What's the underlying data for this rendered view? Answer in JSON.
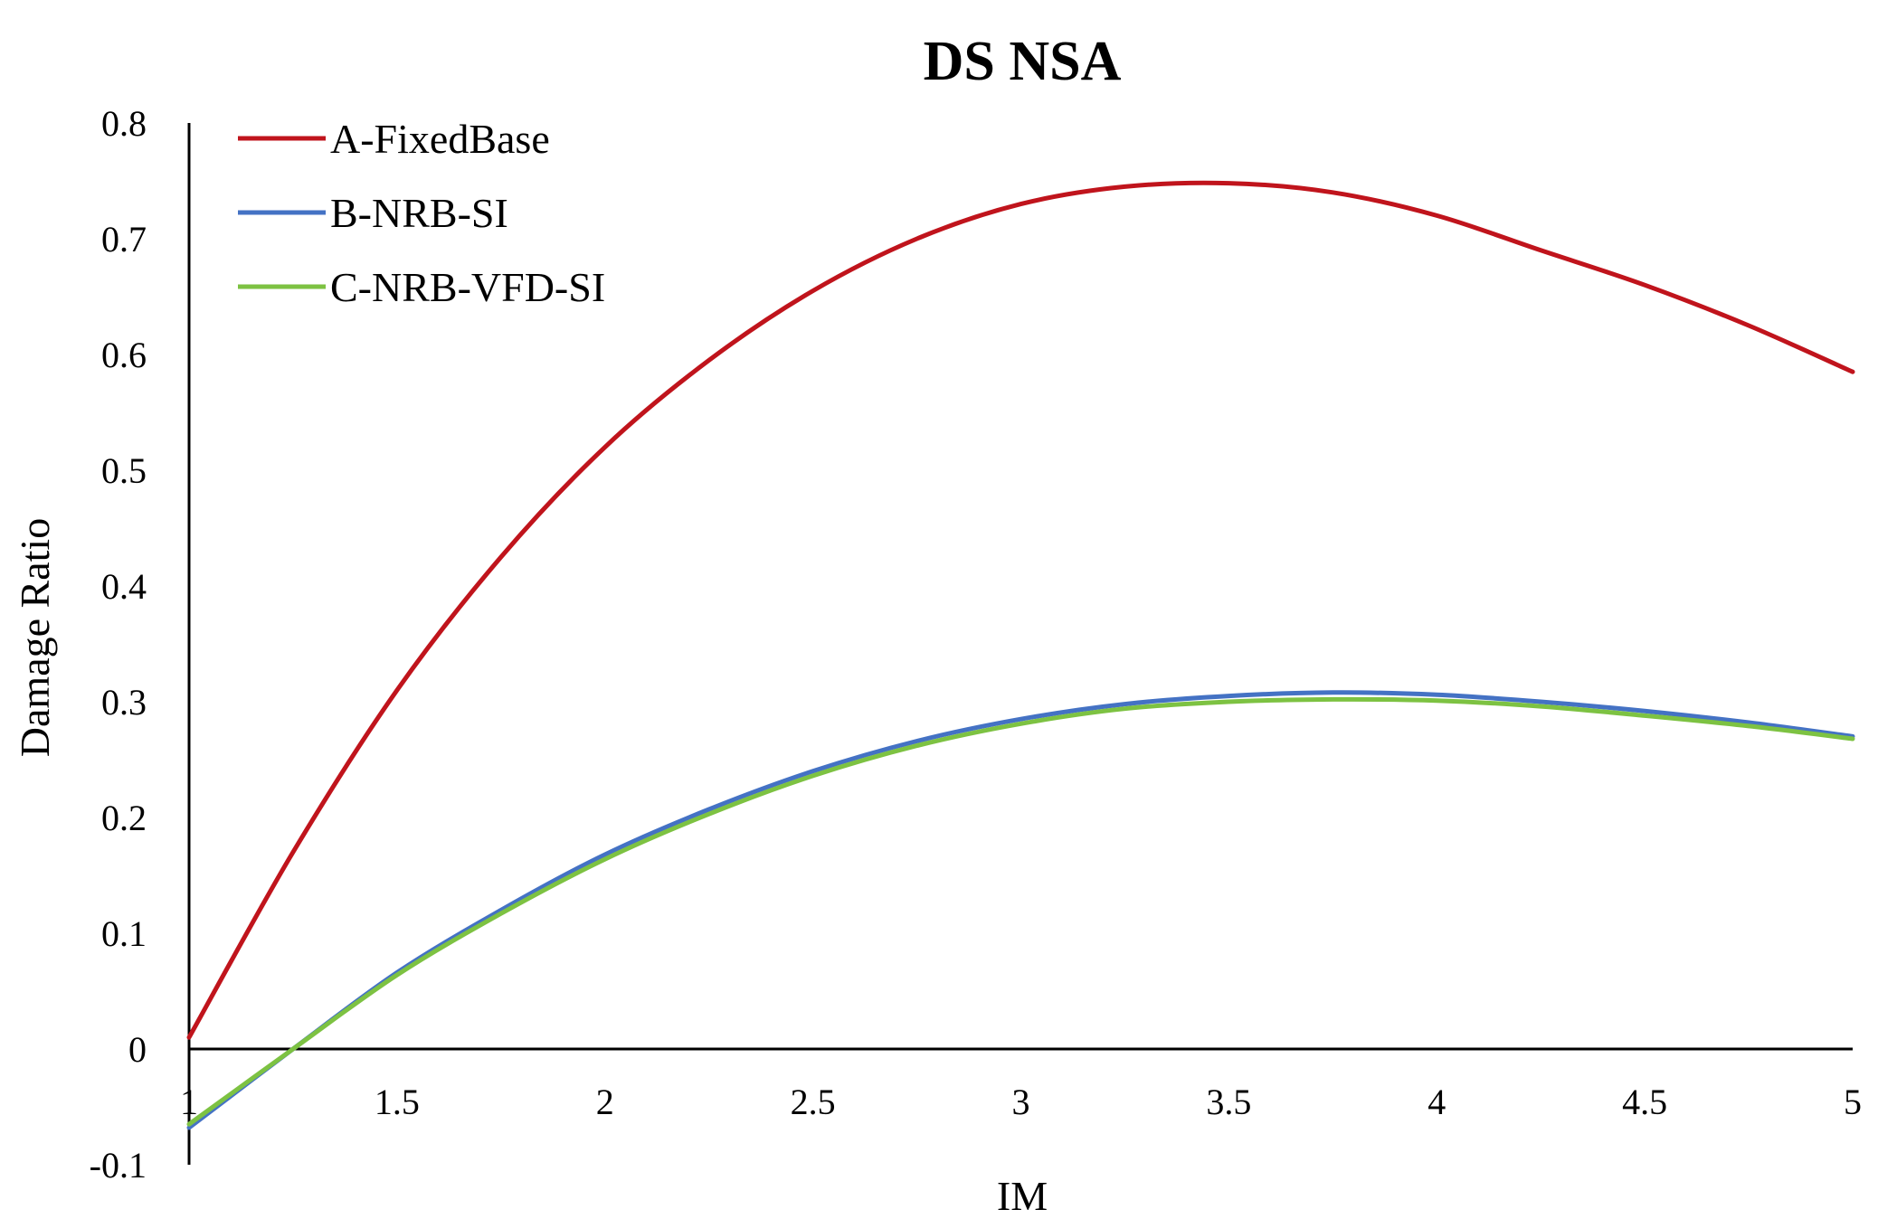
{
  "chart_data": {
    "type": "line",
    "title": "DS NSA",
    "xlabel": "IM",
    "ylabel": "Damage Ratio",
    "xlim": [
      1,
      5
    ],
    "ylim": [
      -0.1,
      0.8
    ],
    "x_ticks": [
      "1",
      "1.5",
      "2",
      "2.5",
      "3",
      "3.5",
      "4",
      "4.5",
      "5"
    ],
    "y_ticks": [
      "0.8",
      "0.7",
      "0.6",
      "0.5",
      "0.4",
      "0.3",
      "0.2",
      "0.1",
      "0",
      "-0.1"
    ],
    "grid": false,
    "legend_position": "top-left",
    "series": [
      {
        "name": "A-FixedBase",
        "color": "#C0141C",
        "x": [
          1.0,
          1.25,
          1.5,
          1.75,
          2.0,
          2.25,
          2.5,
          2.75,
          3.0,
          3.25,
          3.5,
          3.75,
          4.0,
          4.25,
          4.5,
          4.75,
          5.0
        ],
        "y": [
          0.01,
          0.17,
          0.31,
          0.425,
          0.52,
          0.595,
          0.655,
          0.7,
          0.73,
          0.745,
          0.748,
          0.74,
          0.72,
          0.69,
          0.66,
          0.625,
          0.585
        ]
      },
      {
        "name": "B-NRB-SI",
        "color": "#4472C4",
        "x": [
          1.0,
          1.25,
          1.5,
          1.75,
          2.0,
          2.25,
          2.5,
          2.75,
          3.0,
          3.25,
          3.5,
          3.75,
          4.0,
          4.25,
          4.5,
          4.75,
          5.0
        ],
        "y": [
          -0.068,
          0.0,
          0.066,
          0.12,
          0.168,
          0.207,
          0.24,
          0.266,
          0.285,
          0.298,
          0.305,
          0.308,
          0.306,
          0.3,
          0.292,
          0.282,
          0.27
        ]
      },
      {
        "name": "C-NRB-VFD-SI",
        "color": "#7DC242",
        "x": [
          1.0,
          1.25,
          1.5,
          1.75,
          2.0,
          2.25,
          2.5,
          2.75,
          3.0,
          3.25,
          3.5,
          3.75,
          4.0,
          4.25,
          4.5,
          4.75,
          5.0
        ],
        "y": [
          -0.065,
          0.0,
          0.064,
          0.117,
          0.164,
          0.203,
          0.236,
          0.262,
          0.281,
          0.294,
          0.3,
          0.302,
          0.301,
          0.296,
          0.288,
          0.279,
          0.268
        ]
      }
    ]
  }
}
